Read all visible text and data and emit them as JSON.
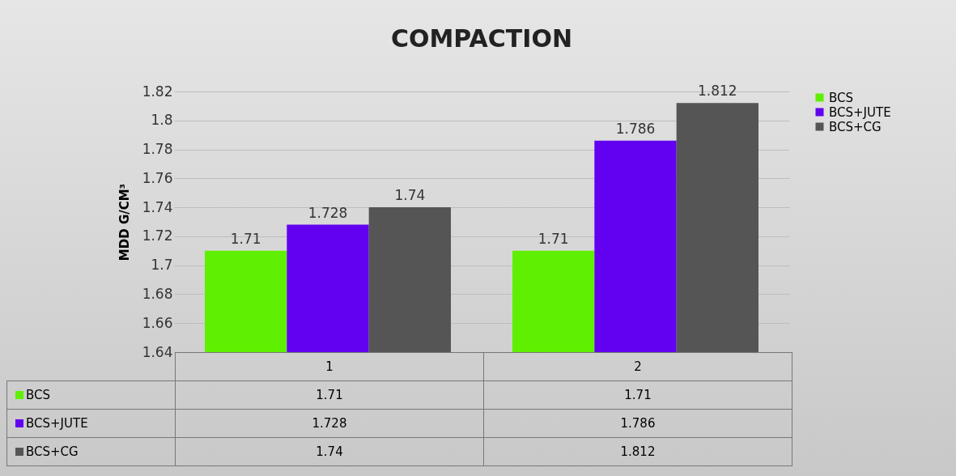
{
  "chart_data": {
    "type": "bar",
    "title": "COMPACTION",
    "ylabel": "MDD G/CM³",
    "categories": [
      "1",
      "2"
    ],
    "series": [
      {
        "name": "BCS",
        "color": "#5ef000",
        "values": [
          1.71,
          1.71
        ],
        "value_labels": [
          "1.71",
          "1.71"
        ]
      },
      {
        "name": "BCS+JUTE",
        "color": "#6200f0",
        "values": [
          1.728,
          1.786
        ],
        "value_labels": [
          "1.728",
          "1.786"
        ]
      },
      {
        "name": "BCS+CG",
        "color": "#555555",
        "values": [
          1.74,
          1.812
        ],
        "value_labels": [
          "1.74",
          "1.812"
        ]
      }
    ],
    "ylim": [
      1.64,
      1.82
    ],
    "yticks": [
      1.64,
      1.66,
      1.68,
      1.7,
      1.72,
      1.74,
      1.76,
      1.78,
      1.8,
      1.82
    ],
    "grid": "y",
    "legend": "right"
  }
}
